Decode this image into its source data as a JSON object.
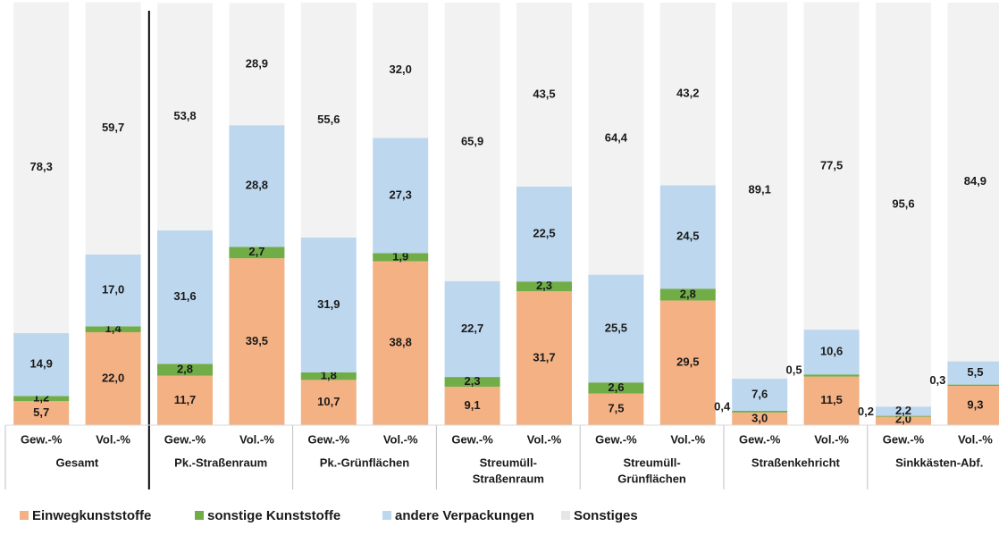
{
  "chart_data": {
    "type": "stacked_bar",
    "ylim": [
      0,
      100
    ],
    "groups": [
      {
        "label": [
          "Gesamt"
        ],
        "categories": [
          "Gew.-%",
          "Vol.-%"
        ]
      },
      {
        "label": [
          "Pk.-Straßenraum"
        ],
        "categories": [
          "Gew.-%",
          "Vol.-%"
        ]
      },
      {
        "label": [
          "Pk.-Grünflächen"
        ],
        "categories": [
          "Gew.-%",
          "Vol.-%"
        ]
      },
      {
        "label": [
          "Streumüll-",
          "Straßenraum"
        ],
        "categories": [
          "Gew.-%",
          "Vol.-%"
        ]
      },
      {
        "label": [
          "Streumüll-",
          "Grünflächen"
        ],
        "categories": [
          "Gew.-%",
          "Vol.-%"
        ]
      },
      {
        "label": [
          "Straßenkehricht"
        ],
        "categories": [
          "Gew.-%",
          "Vol.-%"
        ]
      },
      {
        "label": [
          "Sinkkästen-Abf."
        ],
        "categories": [
          "Gew.-%",
          "Vol.-%"
        ]
      }
    ],
    "series": [
      {
        "name": "Einwegkunststoffe",
        "color": "#f4b183",
        "values": [
          5.7,
          22.0,
          11.7,
          39.5,
          10.7,
          38.8,
          9.1,
          31.7,
          7.5,
          29.5,
          3.0,
          11.5,
          2.0,
          9.3
        ],
        "value_labels": [
          "5,7",
          "22,0",
          "11,7",
          "39,5",
          "10,7",
          "38,8",
          "9,1",
          "31,7",
          "7,5",
          "29,5",
          "3,0",
          "11,5",
          "2,0",
          "9,3"
        ]
      },
      {
        "name": "sonstige Kunststoffe",
        "color": "#70ad47",
        "values": [
          1.2,
          1.4,
          2.8,
          2.7,
          1.8,
          1.9,
          2.3,
          2.3,
          2.6,
          2.8,
          0.4,
          0.5,
          0.2,
          0.3
        ],
        "value_labels": [
          "1,2",
          "1,4",
          "2,8",
          "2,7",
          "1,8",
          "1,9",
          "2,3",
          "2,3",
          "2,6",
          "2,8",
          "0,4",
          "0,5",
          "0,2",
          "0,3"
        ]
      },
      {
        "name": "andere Verpackungen",
        "color": "#bdd7ee",
        "values": [
          14.9,
          17.0,
          31.6,
          28.8,
          31.9,
          27.3,
          22.7,
          22.5,
          25.5,
          24.5,
          7.6,
          10.6,
          2.2,
          5.5
        ],
        "value_labels": [
          "14,9",
          "17,0",
          "31,6",
          "28,8",
          "31,9",
          "27,3",
          "22,7",
          "22,5",
          "25,5",
          "24,5",
          "7,6",
          "10,6",
          "2,2",
          "5,5"
        ]
      },
      {
        "name": "Sonstiges",
        "color": "#f2f2f2",
        "values": [
          78.3,
          59.7,
          53.8,
          28.9,
          55.6,
          32.0,
          65.9,
          43.5,
          64.4,
          43.2,
          89.1,
          77.5,
          95.6,
          84.9
        ],
        "value_labels": [
          "78,3",
          "59,7",
          "53,8",
          "28,9",
          "55,6",
          "32,0",
          "65,9",
          "43,5",
          "64,4",
          "43,2",
          "89,1",
          "77,5",
          "95,6",
          "84,9"
        ]
      }
    ]
  }
}
